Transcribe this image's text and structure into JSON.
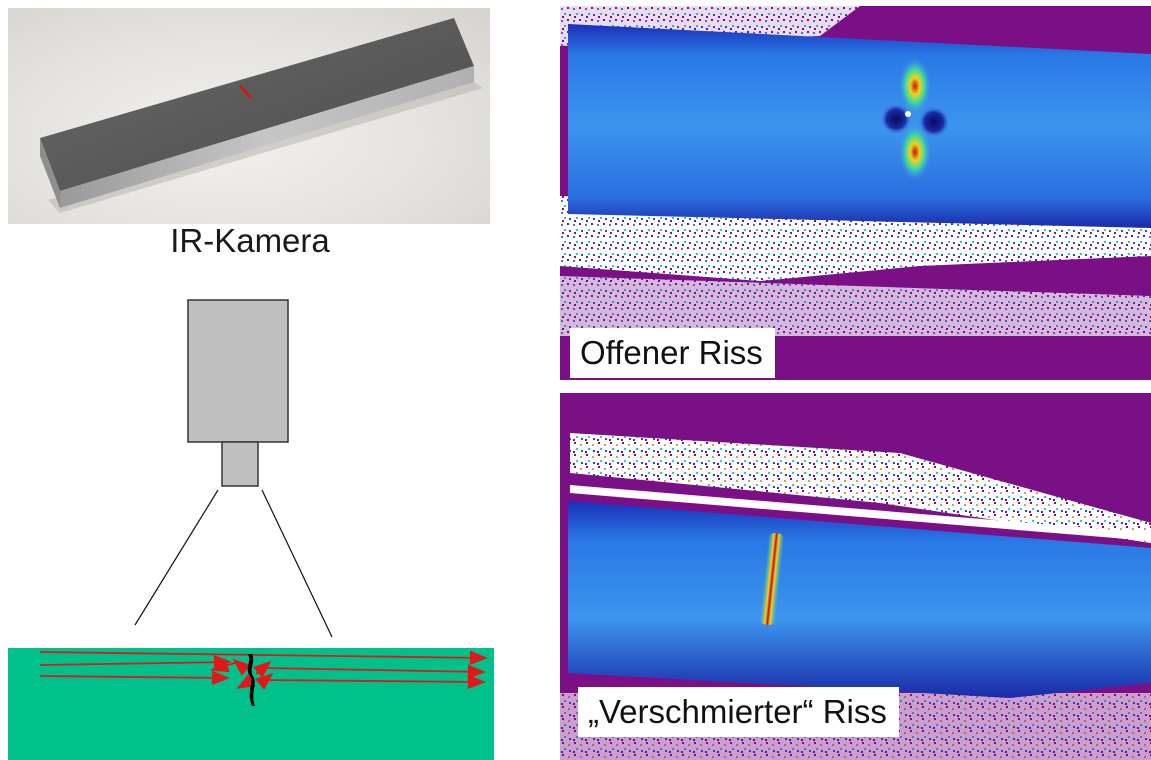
{
  "camera": {
    "title": "IR-Kamera"
  },
  "panels": {
    "open_crack": {
      "label": "Offener Riss"
    },
    "smeared_crack": {
      "label": "„Verschmierter“ Riss"
    }
  },
  "colors": {
    "specimen_green": "#00c08c",
    "camera_gray": "#c0c0c0",
    "arrow_red": "#e01818",
    "crack_black": "#000000",
    "thermal_background": "#7a0f86",
    "thermal_blue": "#1f6fe0"
  }
}
